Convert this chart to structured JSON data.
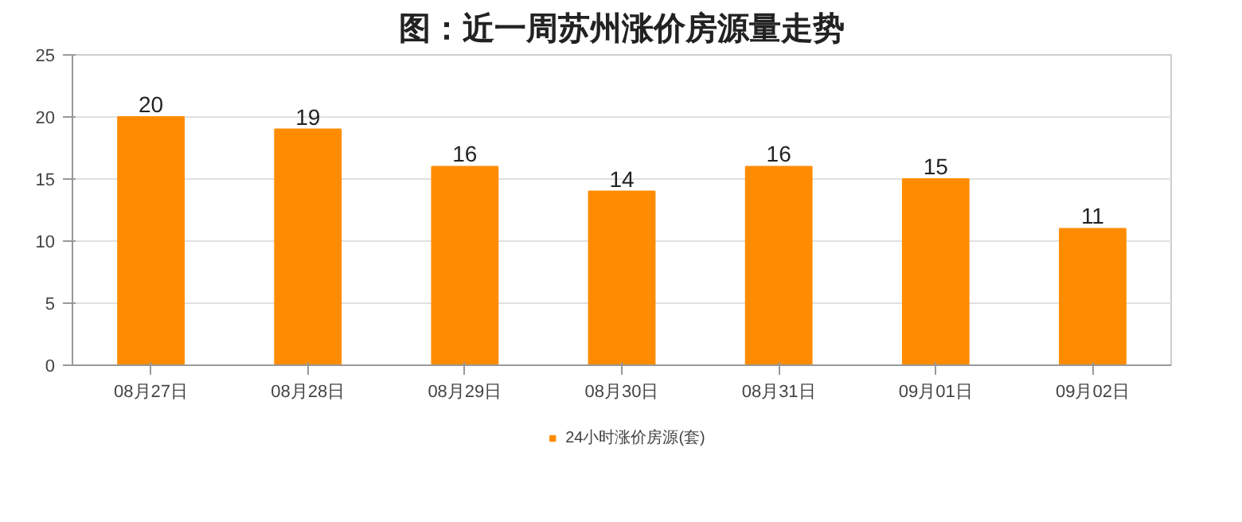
{
  "chart_data": {
    "type": "bar",
    "title": "图：近一周苏州涨价房源量走势",
    "categories": [
      "08月27日",
      "08月28日",
      "08月29日",
      "08月30日",
      "08月31日",
      "09月01日",
      "09月02日"
    ],
    "series": [
      {
        "name": "24小时涨价房源(套)",
        "color": "#ff8c00",
        "values": [
          20,
          19,
          16,
          14,
          16,
          15,
          11
        ]
      }
    ],
    "ylim": [
      0,
      25
    ],
    "yticks": [
      0,
      5,
      10,
      15,
      20,
      25
    ],
    "grid": "y",
    "legend": "bottom",
    "data_labels": true
  }
}
